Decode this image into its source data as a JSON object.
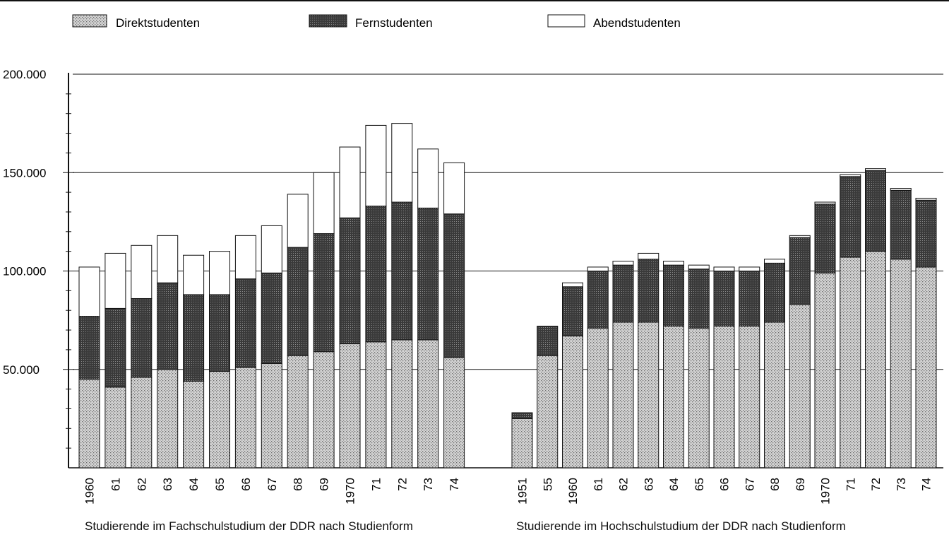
{
  "legend": [
    {
      "key": "direkt",
      "label": "Direktstudenten"
    },
    {
      "key": "fern",
      "label": "Fernstudenten"
    },
    {
      "key": "abend",
      "label": "Abendstudenten"
    }
  ],
  "colors": {
    "direkt_base": "#d4d4d4",
    "direkt_dot": "#6a6a6a",
    "fern_base": "#3a3a3a",
    "fern_dot": "#8a8a8a",
    "abend": "#ffffff",
    "ink": "#111111"
  },
  "y_axis": {
    "ticks": [
      50000,
      100000,
      150000,
      200000
    ],
    "tick_labels": [
      "50.000",
      "100.000",
      "150.000",
      "200.000"
    ],
    "ylim": [
      0,
      200000
    ]
  },
  "captions": {
    "fach": "Studierende im Fachschulstudium der DDR nach Studienform",
    "hoch": "Studierende im Hochschulstudium der DDR nach Studienform"
  },
  "chart_data": [
    {
      "type": "bar",
      "stacked": true,
      "title": "Studierende im Fachschulstudium der DDR nach Studienform",
      "categories": [
        "1960",
        "61",
        "62",
        "63",
        "64",
        "65",
        "66",
        "67",
        "68",
        "69",
        "1970",
        "71",
        "72",
        "73",
        "74"
      ],
      "series": [
        {
          "name": "Direktstudenten",
          "values": [
            45000,
            41000,
            46000,
            50000,
            44000,
            49000,
            51000,
            53000,
            57000,
            59000,
            63000,
            64000,
            65000,
            65000,
            56000
          ]
        },
        {
          "name": "Fernstudenten",
          "values": [
            32000,
            40000,
            40000,
            44000,
            44000,
            39000,
            45000,
            46000,
            55000,
            60000,
            64000,
            69000,
            70000,
            67000,
            73000
          ]
        },
        {
          "name": "Abendstudenten",
          "values": [
            25000,
            28000,
            27000,
            24000,
            20000,
            22000,
            22000,
            24000,
            27000,
            31000,
            36000,
            41000,
            40000,
            30000,
            26000
          ]
        }
      ],
      "ylim": [
        0,
        200000
      ]
    },
    {
      "type": "bar",
      "stacked": true,
      "title": "Studierende im Hochschulstudium der DDR nach Studienform",
      "categories": [
        "1951",
        "55",
        "1960",
        "61",
        "62",
        "63",
        "64",
        "65",
        "66",
        "67",
        "68",
        "69",
        "1970",
        "71",
        "72",
        "73",
        "74"
      ],
      "series": [
        {
          "name": "Direktstudenten",
          "values": [
            25000,
            57000,
            67000,
            71000,
            74000,
            74000,
            72000,
            71000,
            72000,
            72000,
            74000,
            83000,
            99000,
            107000,
            110000,
            106000,
            102000
          ]
        },
        {
          "name": "Fernstudenten",
          "values": [
            3000,
            15000,
            25000,
            29000,
            29000,
            32000,
            31000,
            30000,
            28000,
            28000,
            30000,
            34000,
            35000,
            41000,
            41000,
            35000,
            34000
          ]
        },
        {
          "name": "Abendstudenten",
          "values": [
            0,
            0,
            2000,
            2000,
            2000,
            3000,
            2000,
            2000,
            2000,
            2000,
            2000,
            1000,
            1000,
            1000,
            1000,
            1000,
            1000
          ]
        }
      ],
      "ylim": [
        0,
        200000
      ]
    }
  ]
}
